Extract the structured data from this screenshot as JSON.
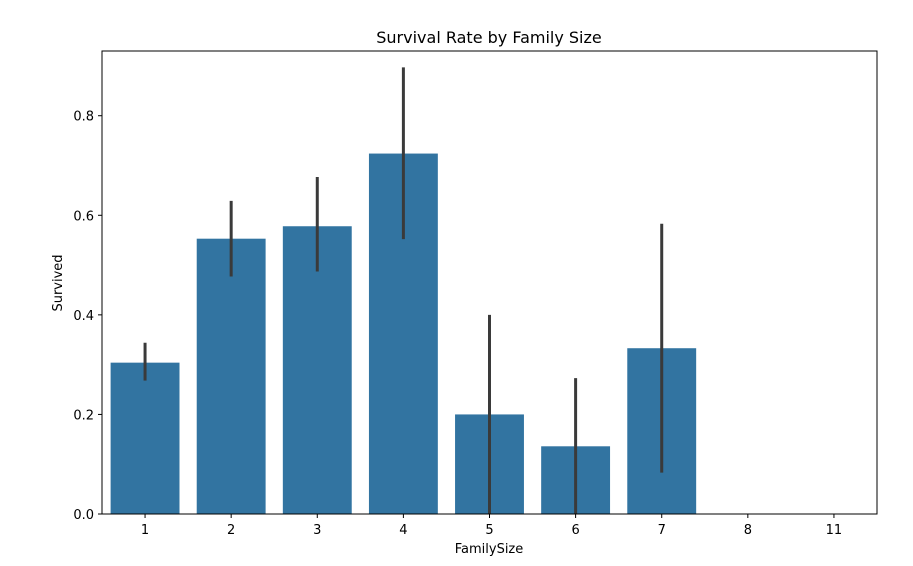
{
  "chart_data": {
    "type": "bar",
    "title": "Survival Rate by Family Size",
    "xlabel": "FamilySize",
    "ylabel": "Survived",
    "categories": [
      "1",
      "2",
      "3",
      "4",
      "5",
      "6",
      "7",
      "8",
      "11"
    ],
    "values": [
      0.304,
      0.553,
      0.578,
      0.724,
      0.2,
      0.136,
      0.333,
      0.0,
      0.0
    ],
    "error_bars": [
      {
        "low": 0.268,
        "high": 0.344
      },
      {
        "low": 0.477,
        "high": 0.629
      },
      {
        "low": 0.487,
        "high": 0.677
      },
      {
        "low": 0.552,
        "high": 0.897
      },
      {
        "low": 0.0,
        "high": 0.4
      },
      {
        "low": 0.0,
        "high": 0.273
      },
      {
        "low": 0.083,
        "high": 0.583
      },
      null,
      null
    ],
    "ylim": [
      0,
      0.93
    ],
    "yticks": [
      0.0,
      0.2,
      0.4,
      0.6,
      0.8
    ],
    "ytick_labels": [
      "0.0",
      "0.2",
      "0.4",
      "0.6",
      "0.8"
    ],
    "grid": false,
    "colors": {
      "bar": "#3274a1",
      "error_bar": "#3a3a3a",
      "axis": "#000000"
    }
  }
}
